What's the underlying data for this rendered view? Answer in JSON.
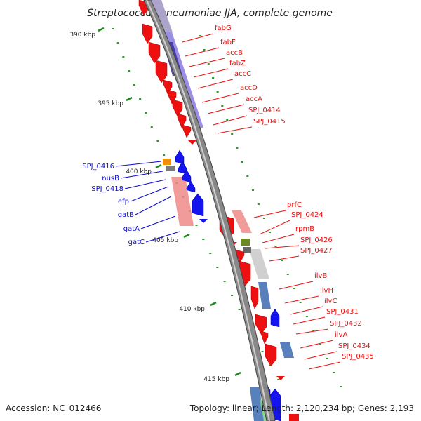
{
  "title": "Streptococcus pneumoniae JJA, complete genome",
  "accession": "Accession: NC_012466",
  "summary": "Topology: linear; Length: 2,120,234 bp; Genes: 2,193",
  "colors": {
    "forward_label": "#e8100e",
    "reverse_label": "#0a0ad0",
    "backbone": "#888888",
    "tick": "#1d8a1d"
  },
  "kbp_ticks": [
    {
      "label": "390 kbp"
    },
    {
      "label": "395 kbp"
    },
    {
      "label": "400 kbp"
    },
    {
      "label": "405 kbp"
    },
    {
      "label": "410 kbp"
    },
    {
      "label": "415 kbp"
    }
  ],
  "forward_genes": [
    {
      "name": "fabG"
    },
    {
      "name": "fabF"
    },
    {
      "name": "accB"
    },
    {
      "name": "fabZ"
    },
    {
      "name": "accC"
    },
    {
      "name": "accD"
    },
    {
      "name": "accA"
    },
    {
      "name": "SPJ_0414"
    },
    {
      "name": "SPJ_0415"
    },
    {
      "name": "prfC"
    },
    {
      "name": "SPJ_0424"
    },
    {
      "name": "rpmB"
    },
    {
      "name": "SPJ_0426"
    },
    {
      "name": "SPJ_0427"
    },
    {
      "name": "ilvB"
    },
    {
      "name": "ilvH"
    },
    {
      "name": "ilvC"
    },
    {
      "name": "SPJ_0431"
    },
    {
      "name": "SPJ_0432"
    },
    {
      "name": "ilvA"
    },
    {
      "name": "SPJ_0434"
    },
    {
      "name": "SPJ_0435"
    }
  ],
  "reverse_genes": [
    {
      "name": "SPJ_0416"
    },
    {
      "name": "nusB"
    },
    {
      "name": "SPJ_0418"
    },
    {
      "name": "efp"
    },
    {
      "name": "gatB"
    },
    {
      "name": "gatA"
    },
    {
      "name": "gatC"
    }
  ]
}
